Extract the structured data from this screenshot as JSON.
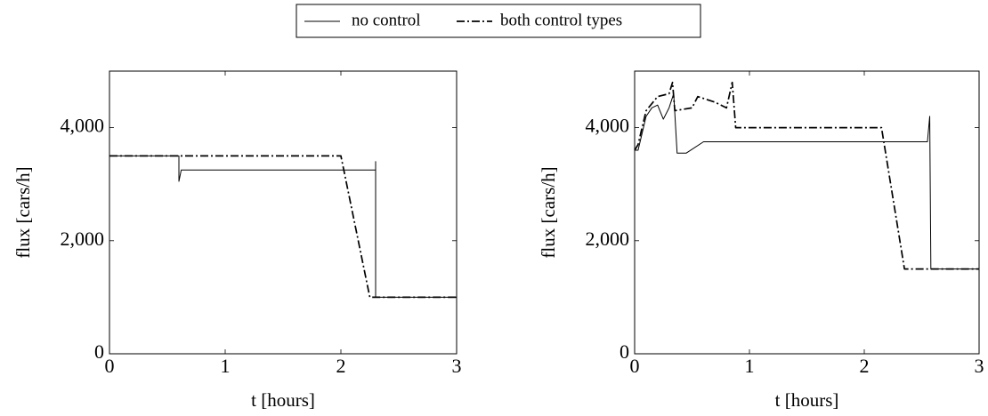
{
  "chart_data": [
    {
      "type": "line",
      "xlabel": "t [hours]",
      "ylabel": "flux [cars/h]",
      "xlim": [
        0,
        3
      ],
      "ylim": [
        0,
        5000
      ],
      "xticks": [
        0,
        1,
        2,
        3
      ],
      "yticks": [
        0,
        {
          "value": 2000,
          "label": "2,000"
        },
        {
          "value": 4000,
          "label": "4,000"
        }
      ],
      "series": [
        {
          "name": "no control",
          "color": "#000000",
          "style": "solid",
          "x": [
            0,
            0.6,
            0.6,
            0.62,
            2.3,
            2.3,
            2.3,
            3
          ],
          "values": [
            3500,
            3500,
            3050,
            3250,
            3250,
            3400,
            1000,
            1000
          ]
        },
        {
          "name": "both control types",
          "color": "#000000",
          "style": "dashdot",
          "x": [
            0,
            2.0,
            2.25,
            3
          ],
          "values": [
            3500,
            3500,
            1000,
            1000
          ]
        }
      ]
    },
    {
      "type": "line",
      "xlabel": "t [hours]",
      "ylabel": "flux [cars/h]",
      "xlim": [
        0,
        3
      ],
      "ylim": [
        0,
        5000
      ],
      "xticks": [
        0,
        1,
        2,
        3
      ],
      "yticks": [
        0,
        {
          "value": 2000,
          "label": "2,000"
        },
        {
          "value": 4000,
          "label": "4,000"
        }
      ],
      "series": [
        {
          "color": "#000000",
          "style": "solid",
          "x": [
            0,
            0.03,
            0.1,
            0.15,
            0.2,
            0.25,
            0.3,
            0.34,
            0.37,
            0.45,
            0.6,
            2.55,
            2.57,
            2.58,
            3
          ],
          "values": [
            3600,
            3600,
            4200,
            4350,
            4400,
            4150,
            4350,
            4600,
            3550,
            3550,
            3750,
            3750,
            4200,
            1500,
            1500
          ]
        },
        {
          "color": "#000000",
          "style": "dashdot",
          "x": [
            0,
            0.03,
            0.1,
            0.2,
            0.3,
            0.33,
            0.35,
            0.5,
            0.55,
            0.7,
            0.8,
            0.85,
            0.88,
            2.15,
            2.35,
            3
          ],
          "values": [
            3600,
            3700,
            4300,
            4550,
            4600,
            4800,
            4300,
            4350,
            4550,
            4450,
            4350,
            4800,
            4000,
            4000,
            1500,
            1500
          ]
        }
      ]
    }
  ]
}
